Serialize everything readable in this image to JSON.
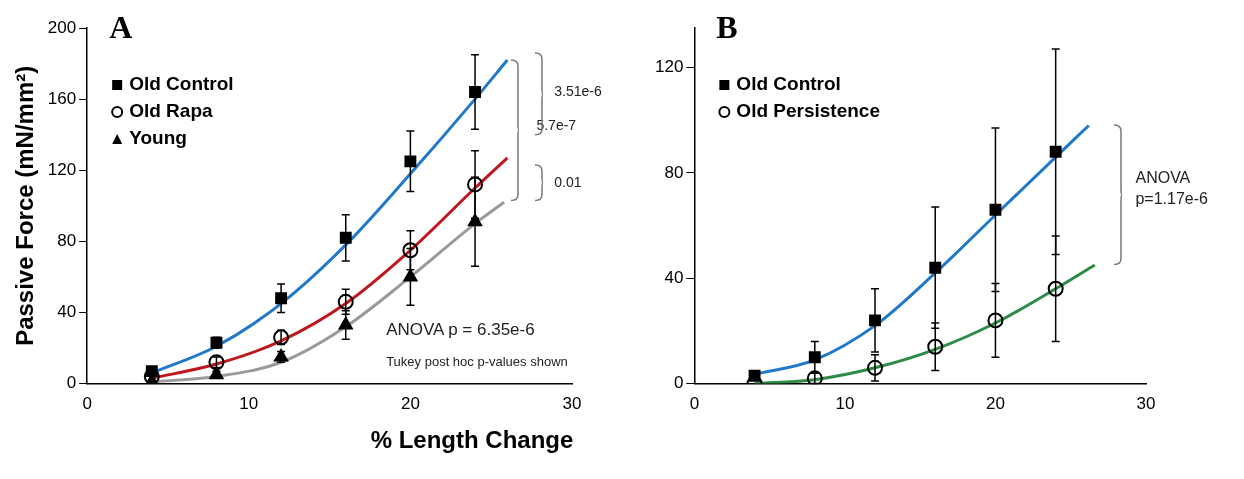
{
  "chart_data": [
    {
      "type": "scatter",
      "title": "A",
      "ylabel": "Passive Force (mN/mm²)",
      "xlabel": "% Length Change",
      "xlim": [
        0,
        30
      ],
      "xticks": [
        0,
        10,
        20,
        30
      ],
      "ylim": [
        0,
        200
      ],
      "yticks": [
        0,
        40,
        80,
        120,
        160,
        200
      ],
      "grid": false,
      "legend": "top left",
      "annotations": [
        "3.51e-6",
        "5.7e-7",
        "0.01",
        "ANOVA p = 6.35e-6",
        "Tukey post hoc p-values shown"
      ],
      "series": [
        {
          "name": "Old Control",
          "type": "scatter",
          "marker": "square",
          "color": "#000000",
          "x": [
            4,
            8,
            12,
            16,
            20,
            24
          ],
          "values": [
            7,
            23,
            48,
            82,
            125,
            164
          ],
          "errors": [
            null,
            3,
            8,
            13,
            17,
            21
          ]
        },
        {
          "name": "Old Rapa",
          "type": "scatter",
          "marker": "circle",
          "color": "#000000",
          "x": [
            4,
            8,
            12,
            16,
            20,
            24
          ],
          "values": [
            4,
            12,
            26,
            46,
            75,
            112
          ],
          "errors": [
            null,
            3,
            4,
            7,
            11,
            19
          ]
        },
        {
          "name": "Young",
          "type": "scatter",
          "marker": "triangle",
          "color": "#000000",
          "x": [
            4,
            8,
            12,
            16,
            20,
            24
          ],
          "values": [
            1,
            5,
            15,
            33,
            60,
            91
          ],
          "errors": [
            null,
            2,
            3,
            8,
            16,
            25
          ]
        },
        {
          "type": "line",
          "marker": "none",
          "color": "#1f78c8",
          "x": [
            4,
            8,
            12,
            16,
            20,
            24,
            26
          ],
          "values": [
            6,
            21,
            45,
            78,
            118,
            160,
            182
          ]
        },
        {
          "type": "line",
          "marker": "none",
          "color": "#c0171f",
          "x": [
            4,
            8,
            12,
            16,
            20,
            24,
            26
          ],
          "values": [
            3,
            11,
            24,
            45,
            75,
            110,
            127
          ]
        },
        {
          "type": "line",
          "marker": "none",
          "color": "#9a9a9a",
          "x": [
            4,
            8,
            12,
            16,
            20,
            24,
            25.8
          ],
          "values": [
            1,
            4,
            12,
            32,
            60,
            90,
            102
          ]
        }
      ]
    },
    {
      "type": "scatter",
      "title": "B",
      "xlim": [
        0,
        30
      ],
      "xticks": [
        0,
        10,
        20,
        30
      ],
      "ylim": [
        0,
        135
      ],
      "yticks": [
        0,
        40,
        80,
        120
      ],
      "grid": false,
      "legend": "top left",
      "annotations": [
        "ANOVA",
        "p=1.17e-6"
      ],
      "series": [
        {
          "name": "Old Control",
          "type": "scatter",
          "marker": "square",
          "color": "#000000",
          "x": [
            4,
            8,
            12,
            16,
            20,
            24
          ],
          "values": [
            3,
            10,
            24,
            44,
            66,
            88
          ],
          "errors": [
            null,
            6,
            12,
            23,
            31,
            39
          ]
        },
        {
          "name": "Old Persistence",
          "type": "scatter",
          "marker": "circle",
          "color": "#000000",
          "x": [
            4,
            8,
            12,
            16,
            20,
            24
          ],
          "values": [
            0,
            2,
            6,
            14,
            24,
            36
          ],
          "errors": [
            null,
            2,
            5,
            9,
            14,
            20
          ]
        },
        {
          "type": "line",
          "marker": "none",
          "color": "#1f78c8",
          "x": [
            4,
            8,
            12,
            16,
            20,
            24,
            26.2
          ],
          "values": [
            3.5,
            9,
            22,
            42,
            64,
            86,
            98
          ]
        },
        {
          "type": "line",
          "marker": "none",
          "color": "#2e8b46",
          "x": [
            4,
            8,
            12,
            16,
            20,
            24,
            26.6
          ],
          "values": [
            0,
            1.5,
            6,
            13,
            23,
            36,
            45
          ]
        }
      ]
    }
  ]
}
